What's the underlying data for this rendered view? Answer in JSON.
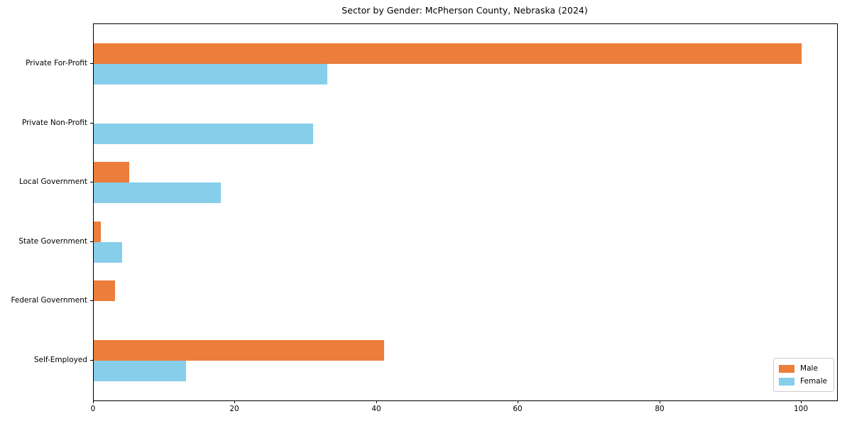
{
  "title": "Sector by Gender: McPherson County, Nebraska (2024)",
  "chart_data": {
    "type": "bar",
    "orientation": "horizontal",
    "title": "Sector by Gender: McPherson County, Nebraska (2024)",
    "categories": [
      "Private For-Profit",
      "Private Non-Profit",
      "Local Government",
      "State Government",
      "Federal Government",
      "Self-Employed"
    ],
    "series": [
      {
        "name": "Male",
        "color": "#ec7d3b",
        "values": [
          100,
          0,
          5,
          1,
          3,
          41
        ]
      },
      {
        "name": "Female",
        "color": "#87ceeb",
        "values": [
          33,
          31,
          18,
          4,
          0,
          13
        ]
      }
    ],
    "xlabel": "",
    "ylabel": "",
    "xlim": [
      0,
      105
    ],
    "xticks": [
      0,
      20,
      40,
      60,
      80,
      100
    ],
    "grid": false,
    "legend_position": "lower right"
  },
  "legend": {
    "entries": [
      "Male",
      "Female"
    ]
  }
}
